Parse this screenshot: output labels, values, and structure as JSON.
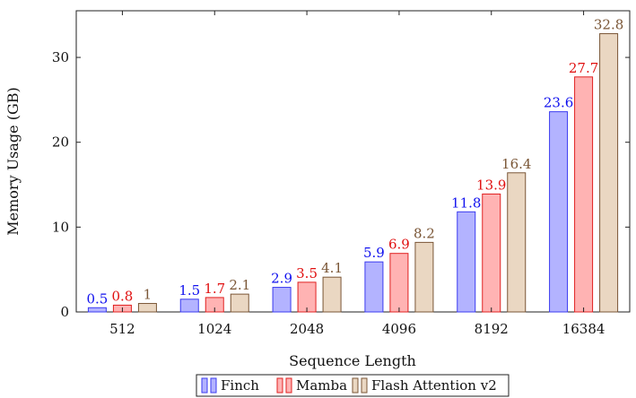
{
  "chart_data": {
    "type": "bar",
    "categories": [
      "512",
      "1024",
      "2048",
      "4096",
      "8192",
      "16384"
    ],
    "series": [
      {
        "name": "Finch",
        "values": [
          0.5,
          1.5,
          2.9,
          5.9,
          11.8,
          23.6
        ],
        "fill": "#b3b3ff",
        "stroke": "#3b3bf0",
        "label_color": "#1111ee"
      },
      {
        "name": "Mamba",
        "values": [
          0.8,
          1.7,
          3.5,
          6.9,
          13.9,
          27.7
        ],
        "fill": "#ffb3b3",
        "stroke": "#e02020",
        "label_color": "#e01010"
      },
      {
        "name": "Flash Attention v2",
        "values": [
          1,
          2.1,
          4.1,
          8.2,
          16.4,
          32.8
        ],
        "fill": "#ead7c2",
        "stroke": "#7a5636",
        "label_color": "#7a5636"
      }
    ],
    "data_labels": [
      [
        "0.5",
        "1.5",
        "2.9",
        "5.9",
        "11.8",
        "23.6"
      ],
      [
        "0.8",
        "1.7",
        "3.5",
        "6.9",
        "13.9",
        "27.7"
      ],
      [
        "1",
        "2.1",
        "4.1",
        "8.2",
        "16.4",
        "32.8"
      ]
    ],
    "xlabel": "Sequence Length",
    "ylabel": "Memory Usage (GB)",
    "ylim": [
      0,
      35.5
    ],
    "yticks": [
      0,
      10,
      20,
      30
    ],
    "grid": false,
    "legend_position": "bottom-center"
  }
}
